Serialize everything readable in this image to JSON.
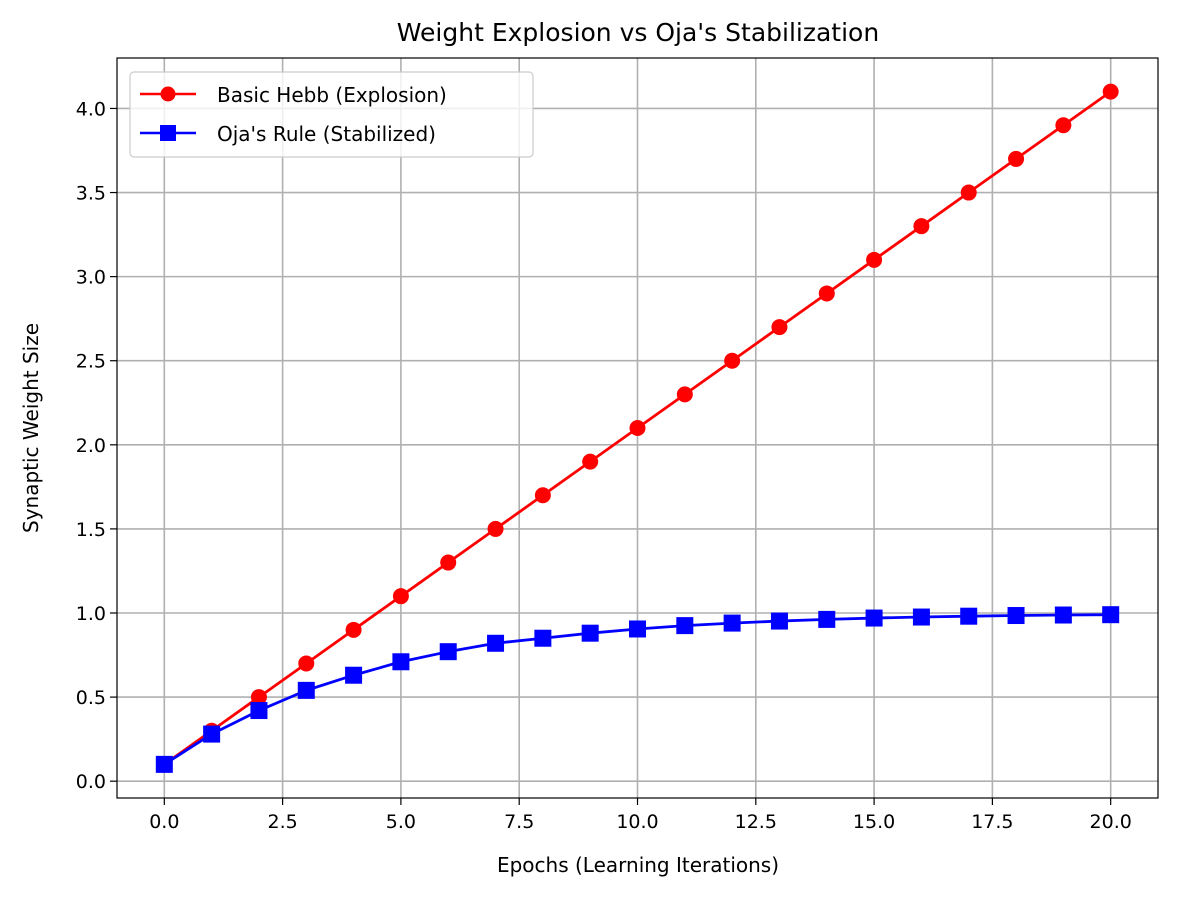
{
  "chart_data": {
    "type": "line",
    "title": "Weight Explosion vs Oja's Stabilization",
    "xlabel": "Epochs (Learning Iterations)",
    "ylabel": "Synaptic Weight Size",
    "xlim": [
      -1.0,
      21.0
    ],
    "ylim": [
      -0.1,
      4.3
    ],
    "xticks": [
      0.0,
      2.5,
      5.0,
      7.5,
      10.0,
      12.5,
      15.0,
      17.5,
      20.0
    ],
    "xtick_labels": [
      "0.0",
      "2.5",
      "5.0",
      "7.5",
      "10.0",
      "12.5",
      "15.0",
      "17.5",
      "20.0"
    ],
    "yticks": [
      0.0,
      0.5,
      1.0,
      1.5,
      2.0,
      2.5,
      3.0,
      3.5,
      4.0
    ],
    "ytick_labels": [
      "0.0",
      "0.5",
      "1.0",
      "1.5",
      "2.0",
      "2.5",
      "3.0",
      "3.5",
      "4.0"
    ],
    "grid": true,
    "legend_position": "top-left",
    "x": [
      0,
      1,
      2,
      3,
      4,
      5,
      6,
      7,
      8,
      9,
      10,
      11,
      12,
      13,
      14,
      15,
      16,
      17,
      18,
      19,
      20
    ],
    "series": [
      {
        "name": "Basic Hebb (Explosion)",
        "color": "#ff0000",
        "marker": "circle",
        "values": [
          0.1,
          0.3,
          0.5,
          0.7,
          0.9,
          1.1,
          1.3,
          1.5,
          1.7,
          1.9,
          2.1,
          2.3,
          2.5,
          2.7,
          2.9,
          3.1,
          3.3,
          3.5,
          3.7,
          3.9,
          4.1
        ]
      },
      {
        "name": "Oja's Rule (Stabilized)",
        "color": "#0000ff",
        "marker": "square",
        "values": [
          0.1,
          0.28,
          0.42,
          0.54,
          0.63,
          0.71,
          0.77,
          0.82,
          0.85,
          0.88,
          0.905,
          0.925,
          0.94,
          0.952,
          0.962,
          0.97,
          0.976,
          0.981,
          0.985,
          0.988,
          0.99
        ]
      }
    ]
  }
}
